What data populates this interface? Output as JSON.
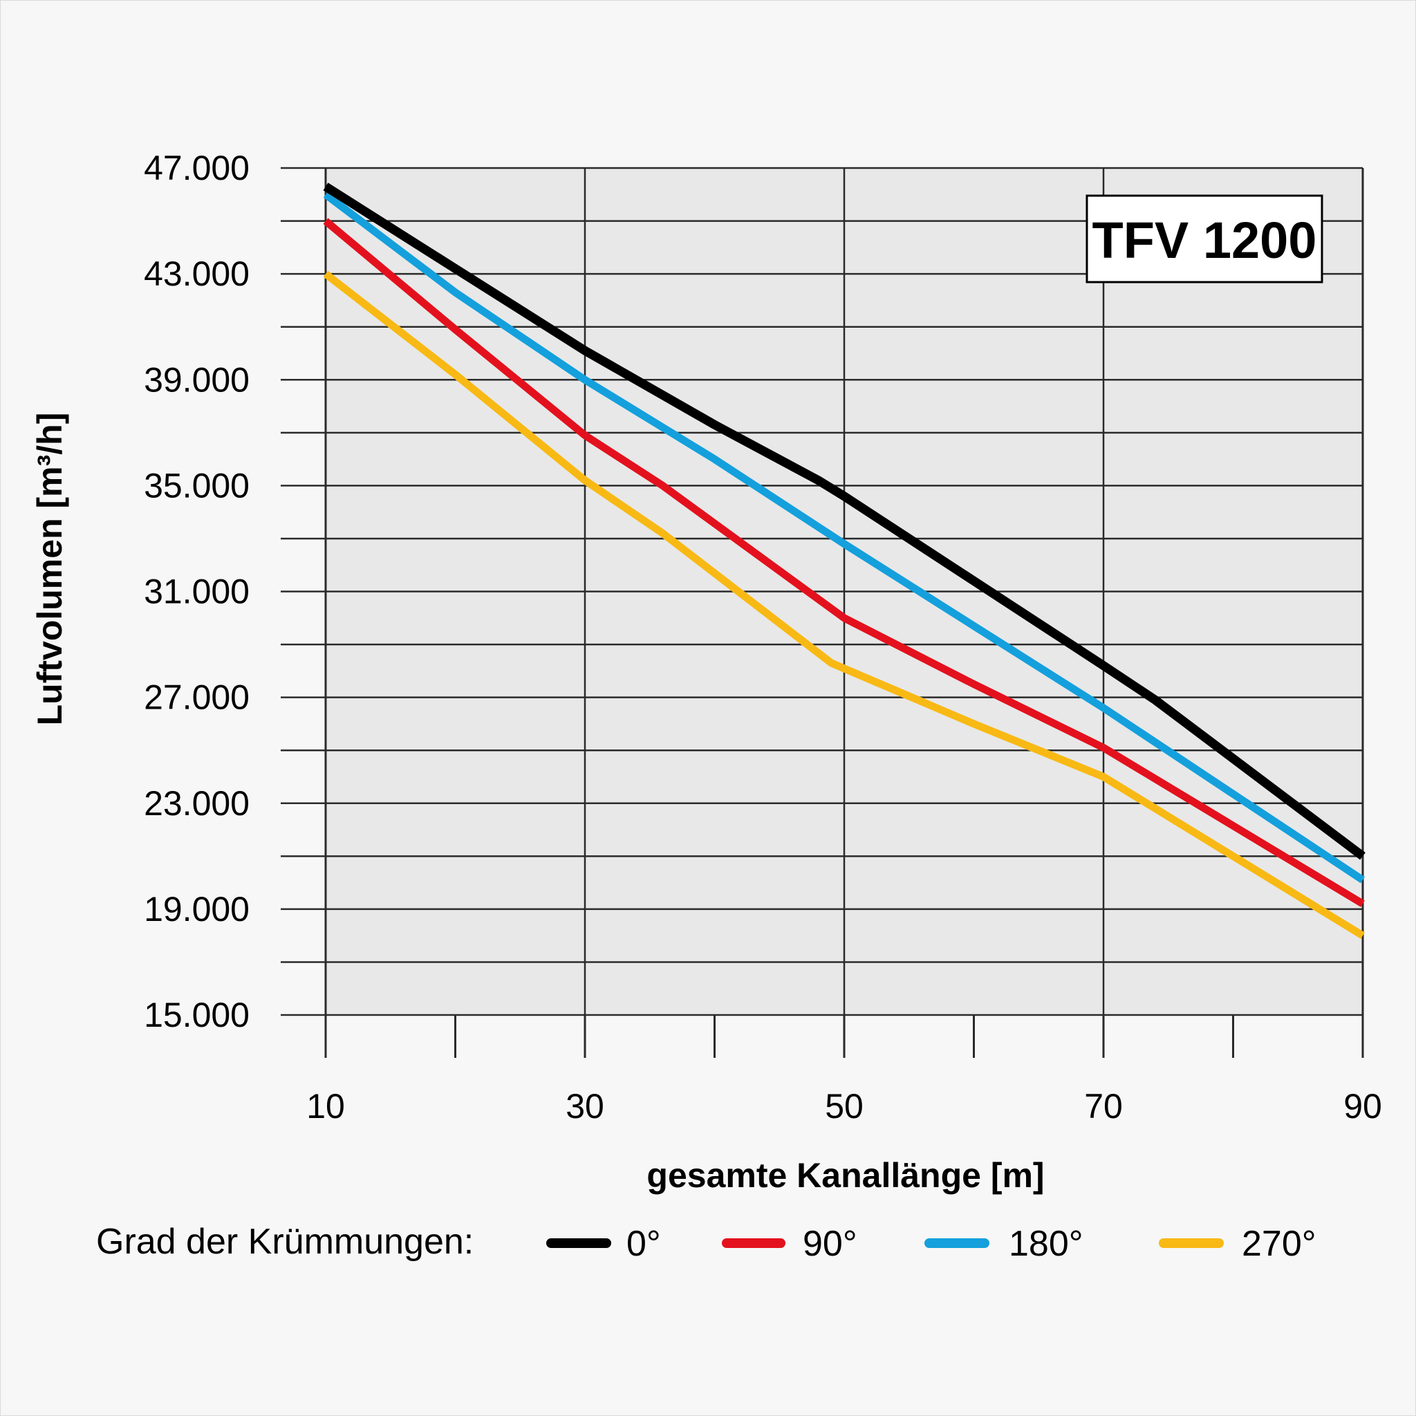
{
  "chart_data": {
    "type": "line",
    "badge": "TFV 1200",
    "xlabel": "gesamte Kanallänge [m]",
    "ylabel": "Luftvolumen [m³/h]",
    "xlim": [
      10,
      90
    ],
    "ylim": [
      15000,
      47000
    ],
    "x_ticks": [
      10,
      30,
      50,
      70,
      90
    ],
    "x_tick_labels": [
      "10",
      "30",
      "50",
      "70",
      "90"
    ],
    "y_ticks": [
      15000,
      19000,
      23000,
      27000,
      31000,
      35000,
      39000,
      43000,
      47000
    ],
    "y_tick_labels": [
      "15.000",
      "19.000",
      "23.000",
      "27.000",
      "31.000",
      "35.000",
      "39.000",
      "43.000",
      "47.000"
    ],
    "grid": true,
    "legend_title": "Grad der Krümmungen:",
    "legend_position": "bottom",
    "series": [
      {
        "name": "0°",
        "color": "#000000",
        "points": [
          [
            10,
            46300
          ],
          [
            20,
            43200
          ],
          [
            30,
            40100
          ],
          [
            40,
            37300
          ],
          [
            48,
            35200
          ],
          [
            50,
            34600
          ],
          [
            60,
            31400
          ],
          [
            70,
            28200
          ],
          [
            74,
            26900
          ],
          [
            90,
            21000
          ]
        ]
      },
      {
        "name": "90°",
        "color": "#e3111d",
        "points": [
          [
            10,
            45000
          ],
          [
            20,
            40900
          ],
          [
            30,
            36900
          ],
          [
            36,
            35000
          ],
          [
            50,
            30000
          ],
          [
            60,
            27500
          ],
          [
            70,
            25100
          ],
          [
            90,
            19200
          ]
        ]
      },
      {
        "name": "180°",
        "color": "#14a0dc",
        "points": [
          [
            10,
            46000
          ],
          [
            20,
            42300
          ],
          [
            30,
            39000
          ],
          [
            40,
            36000
          ],
          [
            50,
            32800
          ],
          [
            60,
            29700
          ],
          [
            70,
            26600
          ],
          [
            90,
            20100
          ]
        ]
      },
      {
        "name": "270°",
        "color": "#f8b914",
        "points": [
          [
            10,
            43000
          ],
          [
            20,
            39200
          ],
          [
            30,
            35200
          ],
          [
            36,
            33200
          ],
          [
            49,
            28300
          ],
          [
            60,
            26000
          ],
          [
            70,
            24000
          ],
          [
            90,
            18000
          ]
        ]
      }
    ]
  }
}
